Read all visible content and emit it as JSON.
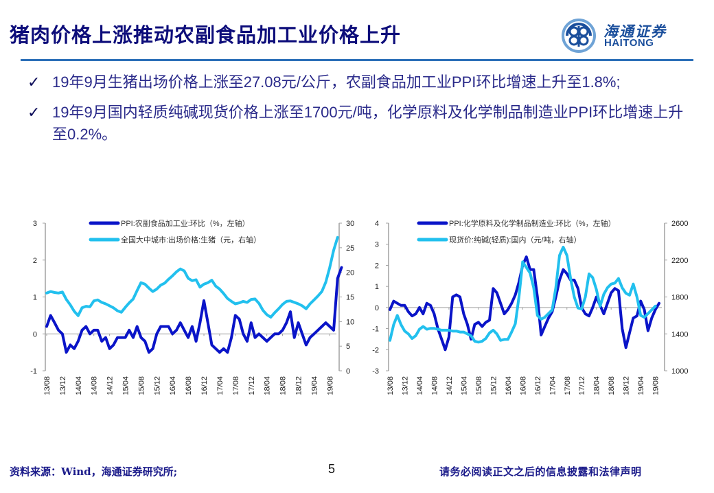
{
  "header": {
    "title": "猪肉价格上涨推动农副食品加工业价格上升",
    "logo_cn": "海通证券",
    "logo_en": "HAITONG"
  },
  "bullets": [
    {
      "icon": "check-icon",
      "text": "19年9月生猪出场价格上涨至27.08元/公斤，农副食品加工业PPI环比增速上升至1.8%;"
    },
    {
      "icon": "check-icon",
      "text": "19年9月国内轻质纯碱现货价格上涨至1700元/吨，化学原料及化学制品制造业PPI环比增速上升至0.2%。"
    }
  ],
  "colors": {
    "dark_series": "#0a14c8",
    "light_series": "#22c0ee",
    "axis": "#a0a0a0",
    "title": "#0d0d7a",
    "rule": "#2c6fb8"
  },
  "chart_data": [
    {
      "type": "line",
      "title": "",
      "x_start": "2013/08",
      "x_end": "2019/09",
      "tick_labels": [
        "13/08",
        "13/12",
        "14/04",
        "14/08",
        "14/12",
        "15/04",
        "15/08",
        "15/12",
        "16/04",
        "16/08",
        "16/12",
        "17/04",
        "17/08",
        "17/12",
        "18/04",
        "18/08",
        "18/12",
        "19/04",
        "19/08"
      ],
      "y_left": {
        "ticks": [
          -1,
          0,
          1,
          2,
          3
        ],
        "ylim": [
          -1,
          3
        ]
      },
      "y_right": {
        "ticks": [
          0,
          5,
          10,
          15,
          20,
          25,
          30
        ],
        "ylim": [
          0,
          30
        ]
      },
      "grid": false,
      "legend": "top",
      "series": [
        {
          "name": "PPI:农副食品加工业:环比（%，左轴）",
          "axis": "left",
          "values": [
            0.2,
            0.5,
            0.3,
            0.1,
            0.0,
            -0.5,
            -0.3,
            -0.4,
            -0.2,
            0.1,
            0.2,
            0.0,
            0.1,
            0.1,
            -0.2,
            -0.1,
            -0.4,
            -0.3,
            -0.1,
            -0.1,
            -0.1,
            0.1,
            -0.1,
            0.2,
            -0.1,
            -0.2,
            -0.5,
            -0.4,
            0.0,
            0.2,
            0.2,
            0.2,
            0.0,
            0.1,
            0.3,
            0.1,
            -0.1,
            0.2,
            -0.2,
            0.3,
            0.9,
            0.3,
            -0.3,
            -0.4,
            -0.5,
            -0.4,
            -0.5,
            -0.1,
            0.5,
            0.4,
            0.0,
            -0.2,
            0.3,
            -0.1,
            0.0,
            -0.1,
            -0.2,
            -0.1,
            0.0,
            0.0,
            0.1,
            0.3,
            0.6,
            -0.1,
            0.3,
            0.0,
            -0.3,
            -0.1,
            0.0,
            0.1,
            0.2,
            0.3,
            0.2,
            0.1,
            1.5,
            1.8
          ]
        },
        {
          "name": "全国大中城市:出场价格:生猪（元，右轴）",
          "axis": "right",
          "values": [
            15.8,
            16.1,
            15.9,
            15.8,
            16.0,
            14.5,
            13.4,
            12.1,
            11.2,
            12.8,
            13.1,
            13.0,
            14.2,
            14.4,
            13.9,
            13.6,
            13.2,
            12.8,
            12.2,
            11.9,
            12.9,
            13.8,
            14.6,
            16.3,
            17.9,
            17.6,
            16.8,
            16.1,
            16.6,
            17.4,
            17.8,
            18.6,
            19.3,
            20.1,
            20.7,
            20.3,
            18.8,
            18.3,
            18.5,
            17.0,
            17.6,
            17.9,
            18.4,
            17.2,
            16.6,
            15.7,
            14.7,
            14.1,
            13.6,
            13.8,
            14.1,
            13.9,
            14.5,
            14.6,
            13.7,
            12.3,
            11.4,
            10.9,
            11.8,
            12.6,
            13.5,
            14.1,
            14.2,
            13.9,
            13.6,
            13.2,
            12.6,
            13.6,
            14.4,
            15.2,
            16.1,
            18.0,
            21.0,
            24.5,
            27.1
          ]
        }
      ]
    },
    {
      "type": "line",
      "title": "",
      "x_start": "2013/08",
      "x_end": "2019/09",
      "tick_labels": [
        "13/08",
        "13/12",
        "14/04",
        "14/08",
        "14/12",
        "15/04",
        "15/08",
        "15/12",
        "16/04",
        "16/08",
        "16/12",
        "17/04",
        "17/08",
        "17/12",
        "18/04",
        "18/08",
        "18/12",
        "19/04",
        "19/08"
      ],
      "y_left": {
        "ticks": [
          -3,
          -2,
          -1,
          0,
          1,
          2,
          3,
          4
        ],
        "ylim": [
          -3,
          4
        ]
      },
      "y_right": {
        "ticks": [
          1000,
          1400,
          1800,
          2200,
          2600
        ],
        "ylim": [
          1000,
          2600
        ]
      },
      "grid": false,
      "legend": "top",
      "series": [
        {
          "name": "PPI:化学原料及化学制品制造业:环比（%，左轴）",
          "axis": "left",
          "values": [
            -0.1,
            0.3,
            0.2,
            0.1,
            0.1,
            -0.2,
            -0.4,
            -0.3,
            0.0,
            -0.3,
            0.2,
            0.1,
            -0.3,
            -1.0,
            -1.5,
            -2.0,
            -1.4,
            0.5,
            0.6,
            0.5,
            -0.3,
            -0.8,
            -1.5,
            -0.8,
            -0.7,
            -0.9,
            -0.7,
            -0.6,
            0.9,
            0.7,
            0.2,
            -0.3,
            -0.1,
            0.2,
            0.6,
            1.2,
            2.0,
            2.4,
            1.8,
            1.8,
            0.5,
            -1.3,
            -0.9,
            -0.5,
            -0.2,
            0.5,
            1.3,
            1.8,
            1.6,
            1.3,
            1.3,
            0.9,
            0.0,
            -0.3,
            -0.4,
            0.0,
            0.5,
            0.1,
            -0.3,
            0.2,
            0.7,
            0.9,
            0.8,
            -1.0,
            -1.9,
            -1.2,
            -0.5,
            -0.4,
            0.3,
            -0.1,
            -1.1,
            -0.5,
            -0.1,
            0.2
          ]
        },
        {
          "name": "现货价:纯碱(轻质):国内（元/吨，右轴）",
          "axis": "right",
          "values": [
            1330,
            1500,
            1600,
            1500,
            1430,
            1400,
            1350,
            1380,
            1450,
            1480,
            1450,
            1460,
            1460,
            1450,
            1440,
            1440,
            1440,
            1430,
            1430,
            1420,
            1420,
            1400,
            1380,
            1320,
            1310,
            1320,
            1350,
            1410,
            1440,
            1400,
            1330,
            1340,
            1340,
            1420,
            1510,
            1800,
            2180,
            2120,
            2060,
            1900,
            1600,
            1560,
            1580,
            1620,
            1660,
            1900,
            2250,
            2340,
            2250,
            2000,
            1800,
            1680,
            1670,
            1800,
            2050,
            2010,
            1880,
            1700,
            1830,
            1900,
            1940,
            1950,
            2000,
            1900,
            1840,
            1820,
            1940,
            1800,
            1600,
            1580,
            1620,
            1660,
            1700
          ]
        }
      ]
    }
  ],
  "footer": {
    "source": "资料来源：Wind，海通证券研究所;",
    "page_number": "5",
    "disclaimer": "请务必阅读正文之后的信息披露和法律声明"
  }
}
